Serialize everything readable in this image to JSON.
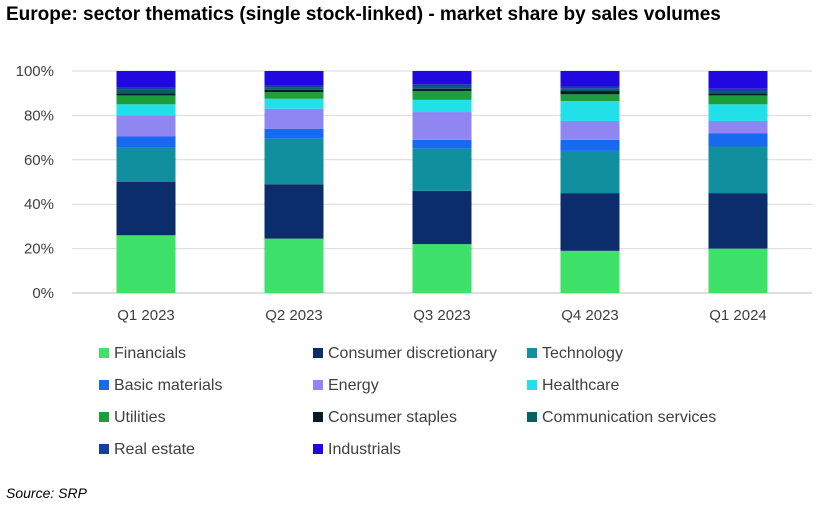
{
  "title": "Europe: sector thematics (single stock-linked) - market share by sales volumes",
  "source": "Source: SRP",
  "chart_data": {
    "type": "bar",
    "stacked": true,
    "categories": [
      "Q1 2023",
      "Q2 2023",
      "Q3 2023",
      "Q4 2023",
      "Q1 2024"
    ],
    "ylim": [
      0,
      100
    ],
    "yticks": [
      "0%",
      "20%",
      "40%",
      "60%",
      "80%",
      "100%"
    ],
    "grid": true,
    "legend_position": "bottom",
    "series": [
      {
        "name": "Financials",
        "color": "#3ee26a",
        "values": [
          26,
          24.5,
          22,
          19,
          20
        ]
      },
      {
        "name": "Consumer discretionary",
        "color": "#0b2d6b",
        "values": [
          24,
          24.5,
          24,
          26,
          25
        ]
      },
      {
        "name": "Technology",
        "color": "#10909e",
        "values": [
          15.5,
          20.5,
          19,
          19,
          21
        ]
      },
      {
        "name": "Basic materials",
        "color": "#1769f0",
        "values": [
          5,
          4.5,
          4,
          5,
          6
        ]
      },
      {
        "name": "Energy",
        "color": "#8f86f2",
        "values": [
          9.5,
          9,
          12.5,
          8.5,
          5.5
        ]
      },
      {
        "name": "Healthcare",
        "color": "#22e0e8",
        "values": [
          5,
          4.5,
          5.5,
          9,
          7.5
        ]
      },
      {
        "name": "Utilities",
        "color": "#1c9e3a",
        "values": [
          4,
          3,
          4,
          3,
          4
        ]
      },
      {
        "name": "Consumer staples",
        "color": "#061a2c",
        "values": [
          1,
          1,
          1,
          1.5,
          1
        ]
      },
      {
        "name": "Communication services",
        "color": "#0a5f62",
        "values": [
          1.5,
          1,
          1,
          1,
          1
        ]
      },
      {
        "name": "Real estate",
        "color": "#123f9a",
        "values": [
          1,
          1,
          1,
          1,
          1
        ]
      },
      {
        "name": "Industrials",
        "color": "#2108e0",
        "values": [
          7.5,
          6.5,
          6,
          7,
          8
        ]
      }
    ]
  }
}
